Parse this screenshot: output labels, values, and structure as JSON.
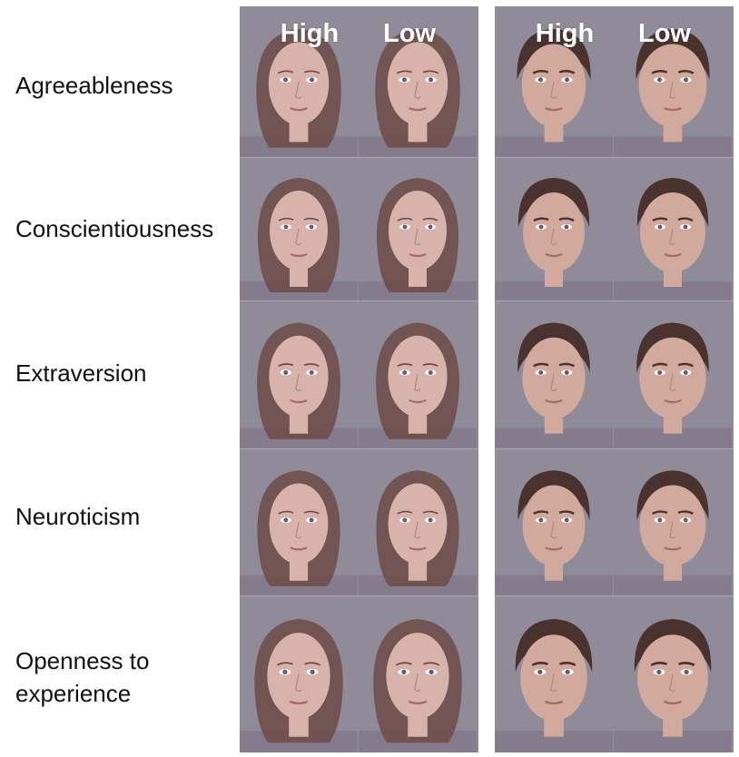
{
  "column_headers": {
    "high": "High",
    "low": "Low"
  },
  "traits": [
    {
      "line1": "Agreeableness",
      "line2": ""
    },
    {
      "line1": "Conscientiousness",
      "line2": ""
    },
    {
      "line1": "Extraversion",
      "line2": ""
    },
    {
      "line1": "Neuroticism",
      "line2": ""
    },
    {
      "line1": "Openness to",
      "line2": "experience"
    }
  ],
  "colors": {
    "background_gray": "#8f8b99",
    "female_skin": "#d8b3ab",
    "female_hair": "#6d4b45",
    "male_skin": "#d2a99d",
    "male_hair": "#4a332e"
  }
}
